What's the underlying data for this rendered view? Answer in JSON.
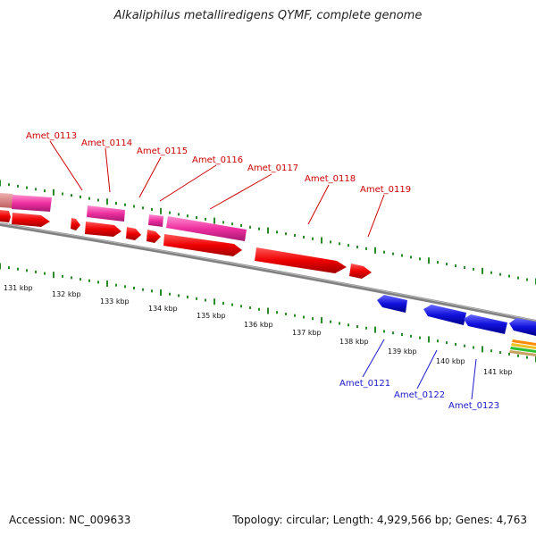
{
  "title": "Alkaliphilus metalliredigens QYMF, complete genome",
  "footer": {
    "accession": "Accession: NC_009633",
    "summary": "Topology: circular; Length: 4,929,566 bp; Genes: 4,763"
  },
  "colors": {
    "forward_gene": "#ee0000",
    "reverse_gene": "#1111dd",
    "rna_gene": "#ee2fa0",
    "label_forward": "#cc0000",
    "label_reverse": "#1a1acc",
    "tick": "#2a8a2a",
    "backbone": "#808080"
  },
  "scale_labels": [
    "131 kbp",
    "132 kbp",
    "133 kbp",
    "134 kbp",
    "135 kbp",
    "136 kbp",
    "137 kbp",
    "138 kbp",
    "139 kbp",
    "140 kbp",
    "141 kbp"
  ],
  "gene_labels_forward": [
    "Amet_0113",
    "Amet_0114",
    "Amet_0115",
    "Amet_0116",
    "Amet_0117",
    "Amet_0118",
    "Amet_0119"
  ],
  "gene_labels_reverse": [
    "Amet_0121",
    "Amet_0122",
    "Amet_0123"
  ]
}
